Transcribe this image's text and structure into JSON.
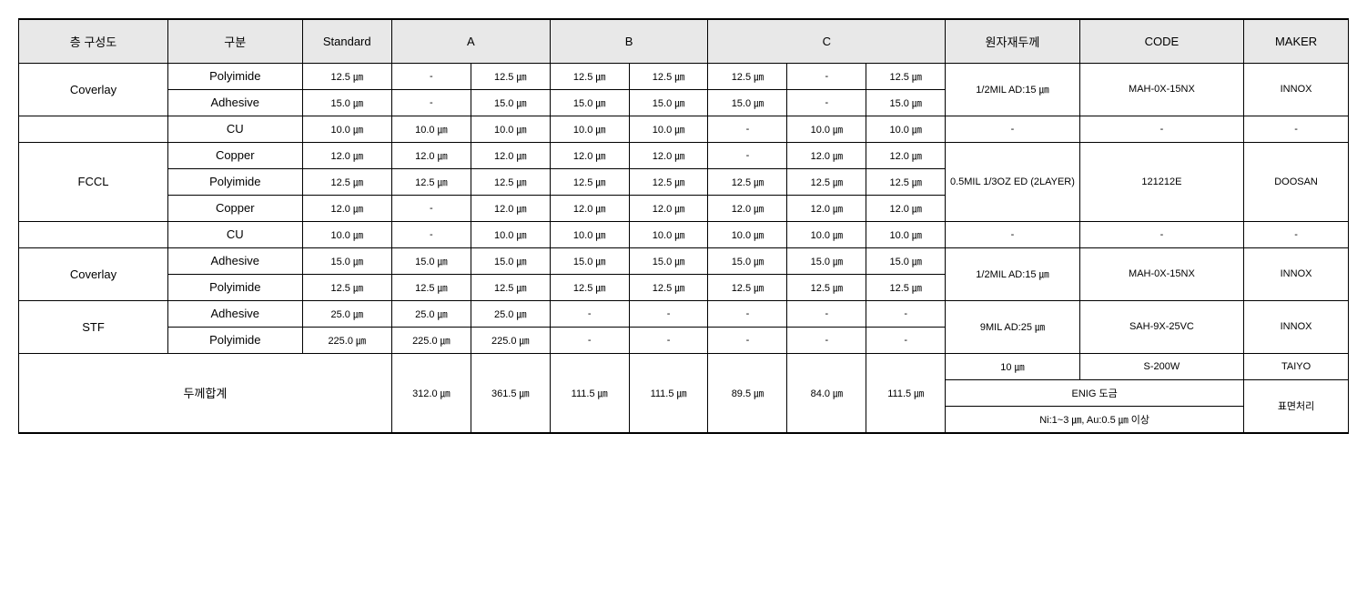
{
  "headers": {
    "layer_composition": "층 구성도",
    "category": "구분",
    "standard": "Standard",
    "a": "A",
    "b": "B",
    "c": "C",
    "material_thickness": "원자재두께",
    "code": "CODE",
    "maker": "MAKER"
  },
  "layers": {
    "coverlay1": "Coverlay",
    "fccl": "FCCL",
    "coverlay2": "Coverlay",
    "stf": "STF"
  },
  "categories": {
    "polyimide": "Polyimide",
    "adhesive": "Adhesive",
    "cu": "CU",
    "copper": "Copper"
  },
  "rows": {
    "r1": {
      "std": "12.5 ㎛",
      "a1": "-",
      "a2": "12.5 ㎛",
      "b1": "12.5 ㎛",
      "b2": "12.5 ㎛",
      "c1": "12.5 ㎛",
      "c2": "-",
      "c3": "12.5 ㎛"
    },
    "r2": {
      "std": "15.0 ㎛",
      "a1": "-",
      "a2": "15.0 ㎛",
      "b1": "15.0 ㎛",
      "b2": "15.0 ㎛",
      "c1": "15.0 ㎛",
      "c2": "-",
      "c3": "15.0 ㎛"
    },
    "r3": {
      "std": "10.0 ㎛",
      "a1": "10.0 ㎛",
      "a2": "10.0 ㎛",
      "b1": "10.0 ㎛",
      "b2": "10.0 ㎛",
      "c1": "-",
      "c2": "10.0 ㎛",
      "c3": "10.0 ㎛"
    },
    "r4": {
      "std": "12.0 ㎛",
      "a1": "12.0 ㎛",
      "a2": "12.0 ㎛",
      "b1": "12.0 ㎛",
      "b2": "12.0 ㎛",
      "c1": "-",
      "c2": "12.0 ㎛",
      "c3": "12.0 ㎛"
    },
    "r5": {
      "std": "12.5 ㎛",
      "a1": "12.5 ㎛",
      "a2": "12.5 ㎛",
      "b1": "12.5 ㎛",
      "b2": "12.5 ㎛",
      "c1": "12.5 ㎛",
      "c2": "12.5 ㎛",
      "c3": "12.5 ㎛"
    },
    "r6": {
      "std": "12.0 ㎛",
      "a1": "-",
      "a2": "12.0 ㎛",
      "b1": "12.0 ㎛",
      "b2": "12.0 ㎛",
      "c1": "12.0 ㎛",
      "c2": "12.0 ㎛",
      "c3": "12.0 ㎛"
    },
    "r7": {
      "std": "10.0 ㎛",
      "a1": "-",
      "a2": "10.0 ㎛",
      "b1": "10.0 ㎛",
      "b2": "10.0 ㎛",
      "c1": "10.0 ㎛",
      "c2": "10.0 ㎛",
      "c3": "10.0 ㎛"
    },
    "r8": {
      "std": "15.0 ㎛",
      "a1": "15.0 ㎛",
      "a2": "15.0 ㎛",
      "b1": "15.0 ㎛",
      "b2": "15.0 ㎛",
      "c1": "15.0 ㎛",
      "c2": "15.0 ㎛",
      "c3": "15.0 ㎛"
    },
    "r9": {
      "std": "12.5 ㎛",
      "a1": "12.5 ㎛",
      "a2": "12.5 ㎛",
      "b1": "12.5 ㎛",
      "b2": "12.5 ㎛",
      "c1": "12.5 ㎛",
      "c2": "12.5 ㎛",
      "c3": "12.5 ㎛"
    },
    "r10": {
      "std": "25.0 ㎛",
      "a1": "25.0 ㎛",
      "a2": "25.0 ㎛",
      "b1": "-",
      "b2": "-",
      "c1": "-",
      "c2": "-",
      "c3": "-"
    },
    "r11": {
      "std": "225.0 ㎛",
      "a1": "225.0 ㎛",
      "a2": "225.0 ㎛",
      "b1": "-",
      "b2": "-",
      "c1": "-",
      "c2": "-",
      "c3": "-"
    }
  },
  "materials": {
    "m1": "1/2MIL AD:15 ㎛",
    "m3": "-",
    "m4": "0.5MIL 1/3OZ ED (2LAYER)",
    "m7": "-",
    "m8": "1/2MIL AD:15 ㎛",
    "m10": "9MIL AD:25 ㎛"
  },
  "codes": {
    "c1": "MAH-0X-15NX",
    "c3": "-",
    "c4": "121212E",
    "c7": "-",
    "c8": "MAH-0X-15NX",
    "c10": "SAH-9X-25VC"
  },
  "makers": {
    "mk1": "INNOX",
    "mk3": "-",
    "mk4": "DOOSAN",
    "mk7": "-",
    "mk8": "INNOX",
    "mk10": "INNOX"
  },
  "totals": {
    "label": "두께합계",
    "a1": "312.0 ㎛",
    "a2": "361.5 ㎛",
    "b1": "111.5 ㎛",
    "b2": "111.5 ㎛",
    "c1": "89.5 ㎛",
    "c2": "84.0 ㎛",
    "c3": "111.5 ㎛",
    "surface_10um": "10 ㎛",
    "surface_code": "S-200W",
    "surface_maker": "TAIYO",
    "enig": "ENIG 도금",
    "surface_treatment": "표면처리",
    "enig_detail": "Ni:1~3 ㎛, Au:0.5 ㎛ 이상"
  },
  "dash": "-"
}
